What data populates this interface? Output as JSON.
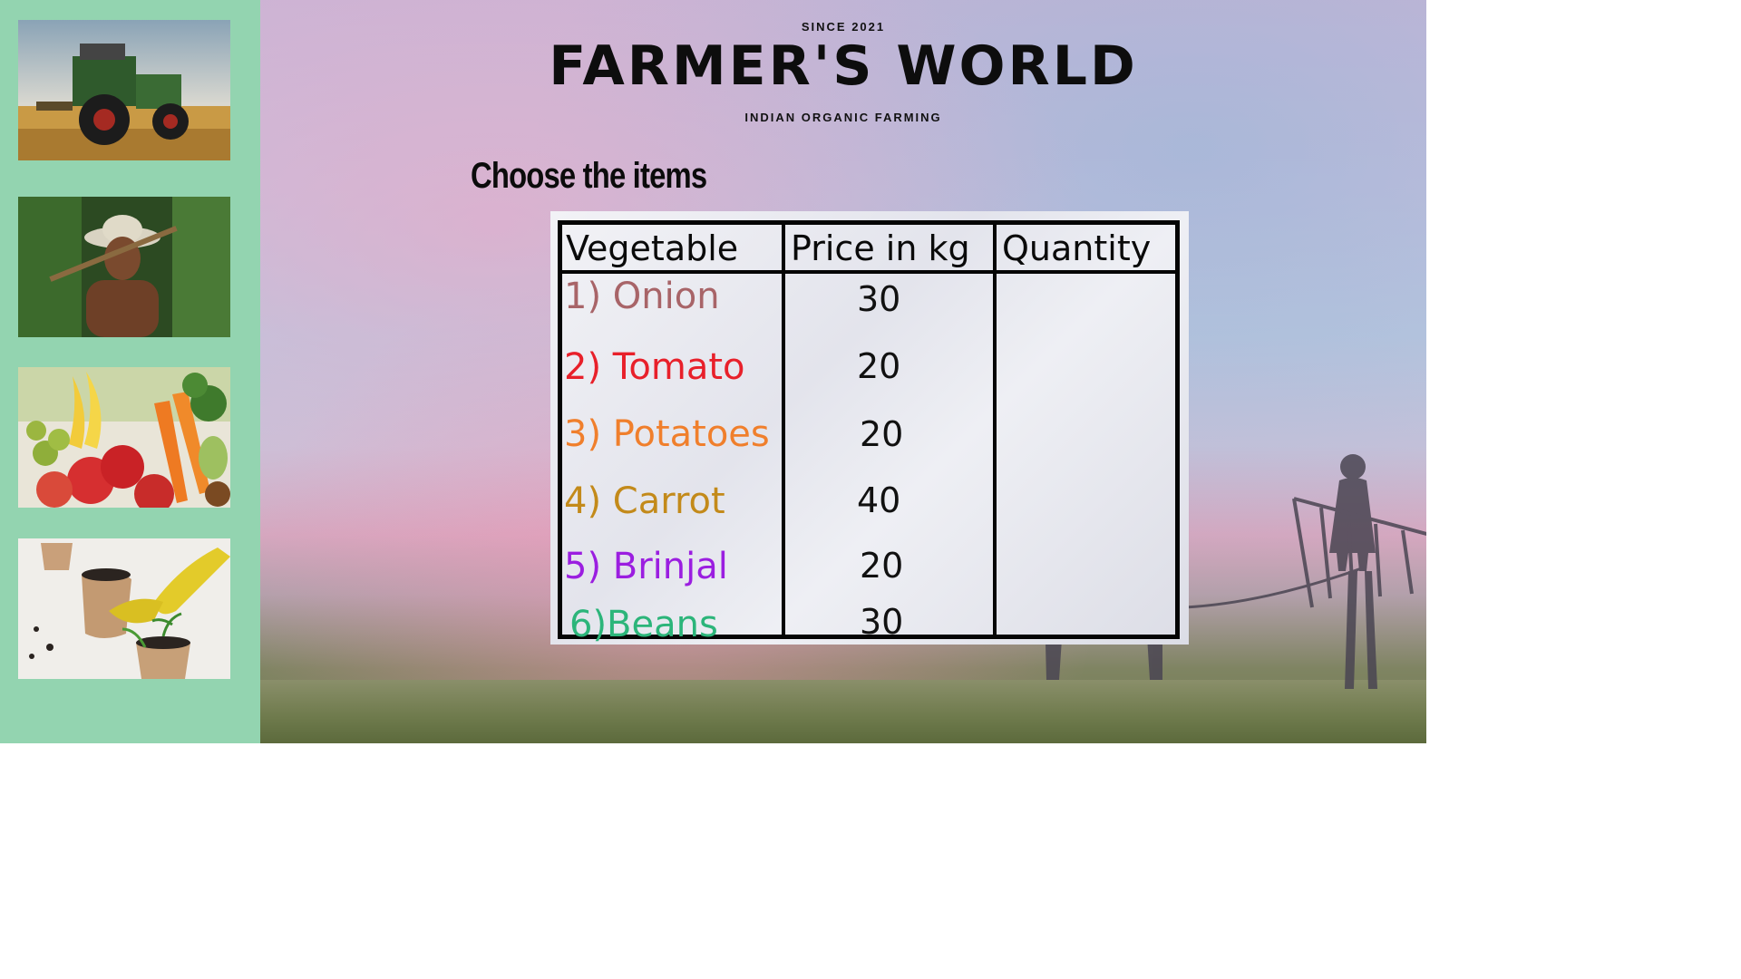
{
  "header": {
    "since": "SINCE 2021",
    "brand": "FARMER'S  WORLD",
    "tagline": "INDIAN ORGANIC FARMING"
  },
  "section_title": "Choose the items",
  "table": {
    "headers": [
      "Vegetable",
      "Price in kg",
      "Quantity"
    ],
    "rows": [
      {
        "vegetable": "1) Onion",
        "price": "30",
        "quantity": "",
        "color": "#a86468"
      },
      {
        "vegetable": "2) Tomato",
        "price": "20",
        "quantity": "",
        "color": "#e8202a"
      },
      {
        "vegetable": "3) Potatoes",
        "price": "20",
        "quantity": "",
        "color": "#f07f2c"
      },
      {
        "vegetable": "4) Carrot",
        "price": "40",
        "quantity": "",
        "color": "#c38a1a"
      },
      {
        "vegetable": "5) Brinjal",
        "price": "20",
        "quantity": "",
        "color": "#9b1ee0"
      },
      {
        "vegetable": "6)Beans",
        "price": "30",
        "quantity": "",
        "color": "#2cb57a"
      }
    ]
  },
  "sidebar": {
    "images": [
      "tractor-photo",
      "farmer-photo",
      "vegetables-photo",
      "gardening-photo"
    ]
  },
  "colors": {
    "sidebar": "#93d4b0",
    "table_border": "#050505"
  }
}
